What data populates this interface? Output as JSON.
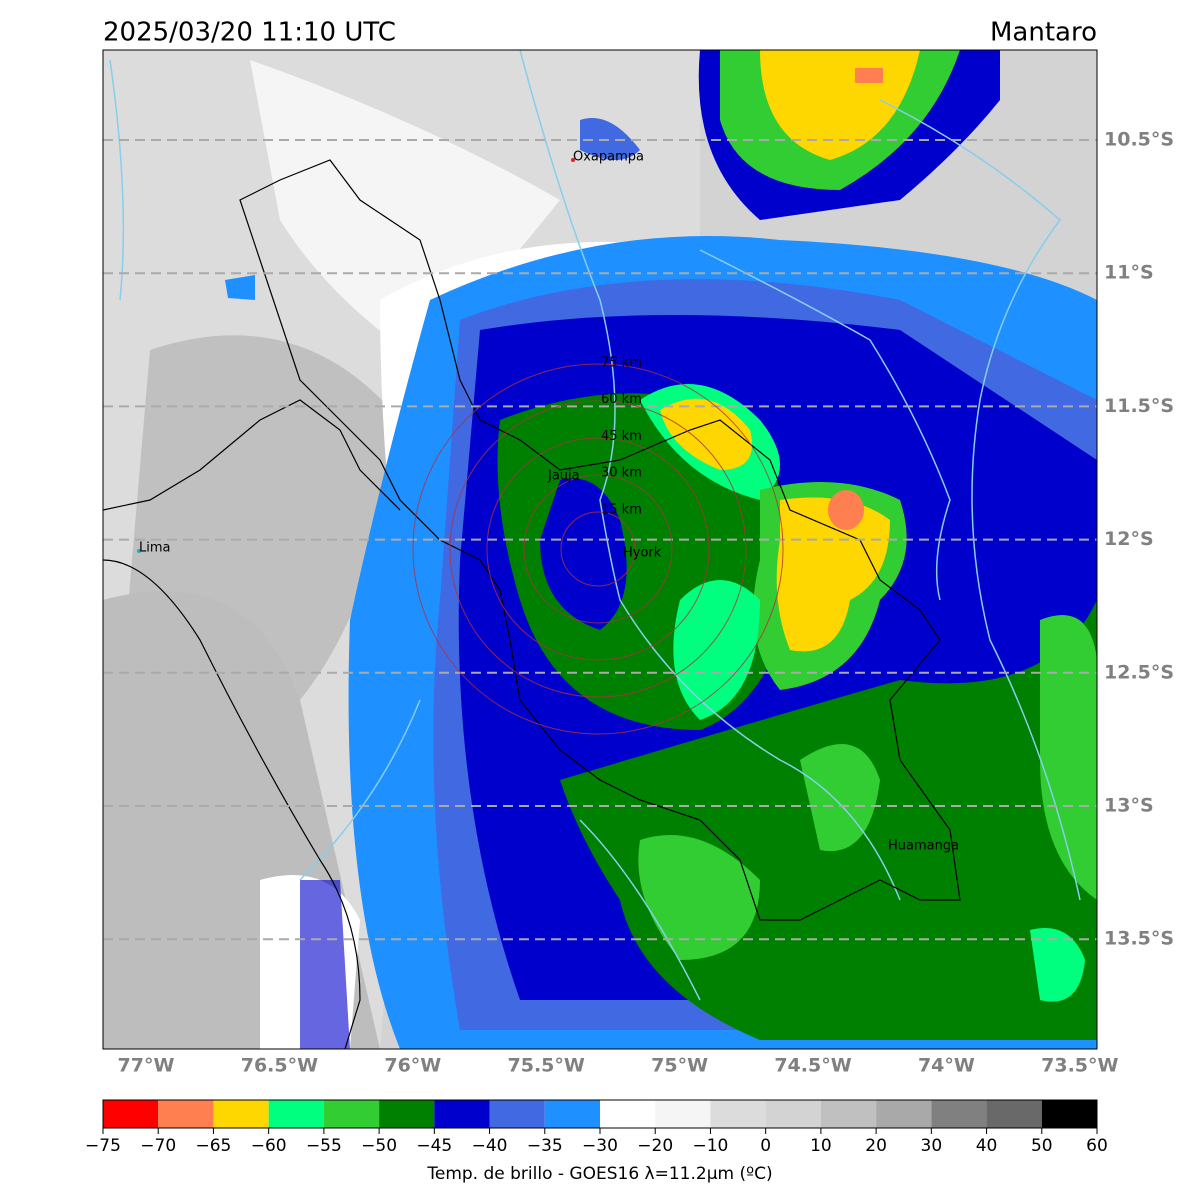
{
  "header": {
    "title": "2025/03/20 11:10 UTC",
    "region": "Mantaro"
  },
  "map": {
    "latitude_labels": [
      "10.5°S",
      "11°S",
      "11.5°S",
      "12°S",
      "12.5°S",
      "13°S",
      "13.5°S"
    ],
    "longitude_labels": [
      "77°W",
      "76.5°W",
      "76°W",
      "75.5°W",
      "75°W",
      "74.5°W",
      "74°W",
      "73.5°W"
    ],
    "places": [
      "Oxapampa",
      "Lima",
      "Jauja",
      "Hyork",
      "Huamanga"
    ],
    "range_rings": [
      "15 km",
      "30 km",
      "45 km",
      "60 km",
      "75 km"
    ]
  },
  "colorbar": {
    "ticks": [
      "−75",
      "−70",
      "−65",
      "−60",
      "−55",
      "−50",
      "−45",
      "−40",
      "−35",
      "−30",
      "−20",
      "−10",
      "0",
      "10",
      "20",
      "30",
      "40",
      "50",
      "60"
    ],
    "colors": [
      "#ff0000",
      "#ff7f50",
      "#ffd700",
      "#00ff7f",
      "#32cd32",
      "#008000",
      "#0000cd",
      "#4169e1",
      "#1e90ff",
      "#ffffff",
      "#f5f5f5",
      "#dcdcdc",
      "#d3d3d3",
      "#c0c0c0",
      "#a9a9a9",
      "#808080",
      "#696969",
      "#000000"
    ],
    "label": "Temp. de brillo - GOES16 λ=11.2μm (ºC)"
  }
}
